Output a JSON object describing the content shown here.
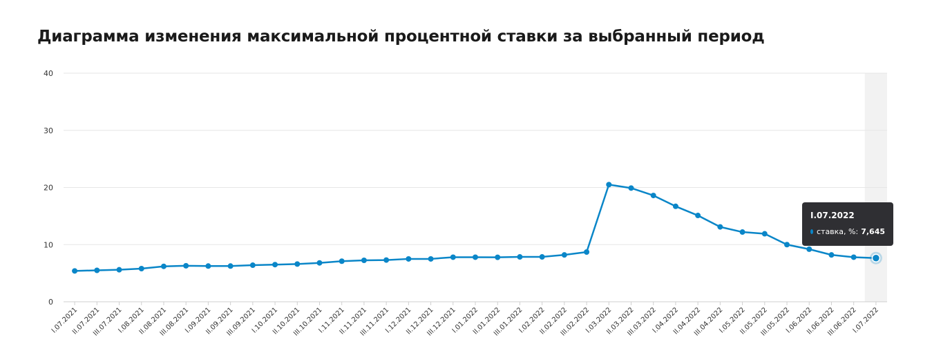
{
  "title": "Диаграмма изменения максимальной процентной ставки за выбранный период",
  "chart_data": {
    "type": "line",
    "title": "Диаграмма изменения максимальной процентной ставки за выбранный период",
    "xlabel": "",
    "ylabel": "",
    "ylim": [
      0,
      40
    ],
    "yticks": [
      "0",
      "10",
      "20",
      "30",
      "40"
    ],
    "grid": true,
    "categories": [
      "I.07.2021",
      "II.07.2021",
      "III.07.2021",
      "I.08.2021",
      "II.08.2021",
      "III.08.2021",
      "I.09.2021",
      "II.09.2021",
      "III.09.2021",
      "I.10.2021",
      "II.10.2021",
      "III.10.2021",
      "I.11.2021",
      "II.11.2021",
      "III.11.2021",
      "I.12.2021",
      "II.12.2021",
      "III.12.2021",
      "I.01.2022",
      "II.01.2022",
      "III.01.2022",
      "I.02.2022",
      "II.02.2022",
      "III.02.2022",
      "I.03.2022",
      "II.03.2022",
      "III.03.2022",
      "I.04.2022",
      "II.04.2022",
      "III.04.2022",
      "I.05.2022",
      "II.05.2022",
      "III.05.2022",
      "I.06.2022",
      "II.06.2022",
      "III.06.2022",
      "I.07.2022"
    ],
    "series": [
      {
        "name": "ставка, %",
        "color": "#0a86c8",
        "values": [
          5.4,
          5.5,
          5.6,
          5.8,
          6.2,
          6.3,
          6.25,
          6.25,
          6.4,
          6.5,
          6.6,
          6.8,
          7.1,
          7.25,
          7.3,
          7.5,
          7.5,
          7.8,
          7.8,
          7.78,
          7.85,
          7.85,
          8.2,
          8.7,
          20.5,
          19.9,
          18.6,
          16.7,
          15.1,
          13.1,
          12.2,
          11.9,
          10.0,
          9.2,
          8.2,
          7.8,
          7.645
        ]
      }
    ],
    "highlight_index": 36,
    "tooltip": {
      "date": "I.07.2022",
      "label": "ставка, %:",
      "value": "7,645"
    }
  }
}
